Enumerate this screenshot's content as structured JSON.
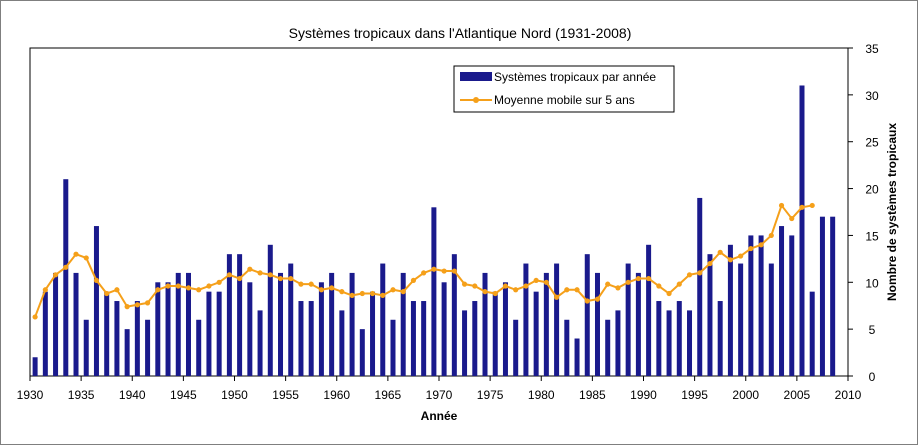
{
  "chart_data": {
    "type": "bar",
    "title": "Systèmes tropicaux dans l'Atlantique Nord (1931-2008)",
    "xlabel": "Année",
    "ylabel": "Nombre de systèmes tropicaux",
    "xlim": [
      1930,
      2010
    ],
    "ylim": [
      0,
      35
    ],
    "x_ticks": [
      "1930",
      "1935",
      "1940",
      "1945",
      "1950",
      "1955",
      "1960",
      "1965",
      "1970",
      "1975",
      "1980",
      "1985",
      "1990",
      "1995",
      "2000",
      "2005",
      "2010"
    ],
    "y_ticks": [
      "0",
      "5",
      "10",
      "15",
      "20",
      "25",
      "30",
      "35"
    ],
    "y_axis_side": "right",
    "grid": false,
    "legend_position": "top-right",
    "colors": {
      "bars": "#1a1a8c",
      "line": "#f5a01a",
      "frame": "#000000"
    },
    "series": [
      {
        "name": "Systèmes tropicaux par année",
        "type": "bar",
        "x": [
          1930,
          1931,
          1932,
          1933,
          1934,
          1935,
          1936,
          1937,
          1938,
          1939,
          1940,
          1941,
          1942,
          1943,
          1944,
          1945,
          1946,
          1947,
          1948,
          1949,
          1950,
          1951,
          1952,
          1953,
          1954,
          1955,
          1956,
          1957,
          1958,
          1959,
          1960,
          1961,
          1962,
          1963,
          1964,
          1965,
          1966,
          1967,
          1968,
          1969,
          1970,
          1971,
          1972,
          1973,
          1974,
          1975,
          1976,
          1977,
          1978,
          1979,
          1980,
          1981,
          1982,
          1983,
          1984,
          1985,
          1986,
          1987,
          1988,
          1989,
          1990,
          1991,
          1992,
          1993,
          1994,
          1995,
          1996,
          1997,
          1998,
          1999,
          2000,
          2001,
          2002,
          2003,
          2004,
          2005,
          2006,
          2007,
          2008
        ],
        "values": [
          2,
          9,
          11,
          21,
          11,
          6,
          16,
          9,
          8,
          5,
          8,
          6,
          10,
          10,
          11,
          11,
          6,
          9,
          9,
          13,
          13,
          10,
          7,
          14,
          11,
          12,
          8,
          8,
          10,
          11,
          7,
          11,
          5,
          9,
          12,
          6,
          11,
          8,
          8,
          18,
          10,
          13,
          7,
          8,
          11,
          9,
          10,
          6,
          12,
          9,
          11,
          12,
          6,
          4,
          13,
          11,
          6,
          7,
          12,
          11,
          14,
          8,
          7,
          8,
          7,
          19,
          13,
          8,
          14,
          12,
          15,
          15,
          12,
          16,
          15,
          31,
          9,
          17,
          17
        ]
      },
      {
        "name": "Moyenne mobile sur 5 ans",
        "type": "line",
        "x": [
          1930,
          1931,
          1932,
          1933,
          1934,
          1935,
          1936,
          1937,
          1938,
          1939,
          1940,
          1941,
          1942,
          1943,
          1944,
          1945,
          1946,
          1947,
          1948,
          1949,
          1950,
          1951,
          1952,
          1953,
          1954,
          1955,
          1956,
          1957,
          1958,
          1959,
          1960,
          1961,
          1962,
          1963,
          1964,
          1965,
          1966,
          1967,
          1968,
          1969,
          1970,
          1971,
          1972,
          1973,
          1974,
          1975,
          1976,
          1977,
          1978,
          1979,
          1980,
          1981,
          1982,
          1983,
          1984,
          1985,
          1986,
          1987,
          1988,
          1989,
          1990,
          1991,
          1992,
          1993,
          1994,
          1995,
          1996,
          1997,
          1998,
          1999,
          2000,
          2001,
          2002,
          2003,
          2004,
          2005,
          2006
        ],
        "values": [
          6.3,
          9.2,
          10.8,
          11.6,
          13,
          12.6,
          10.2,
          8.8,
          9.2,
          7.4,
          7.6,
          7.8,
          9.2,
          9.6,
          9.6,
          9.4,
          9.2,
          9.6,
          10,
          10.8,
          10.4,
          11.4,
          11,
          10.8,
          10.4,
          10.4,
          9.8,
          9.8,
          9.2,
          9.4,
          9,
          8.6,
          8.8,
          8.8,
          8.6,
          9.2,
          9,
          10.2,
          11,
          11.4,
          11.2,
          11.2,
          9.8,
          9.6,
          9,
          8.8,
          9.6,
          9.2,
          9.6,
          10.2,
          10,
          8.4,
          9.2,
          9.2,
          8,
          8.2,
          9.8,
          9.4,
          10,
          10.4,
          10.4,
          9.6,
          8.8,
          9.8,
          10.8,
          11,
          12,
          13.2,
          12.4,
          12.8,
          13.6,
          14,
          15,
          18.2,
          16.8,
          18,
          18.2
        ]
      }
    ]
  }
}
